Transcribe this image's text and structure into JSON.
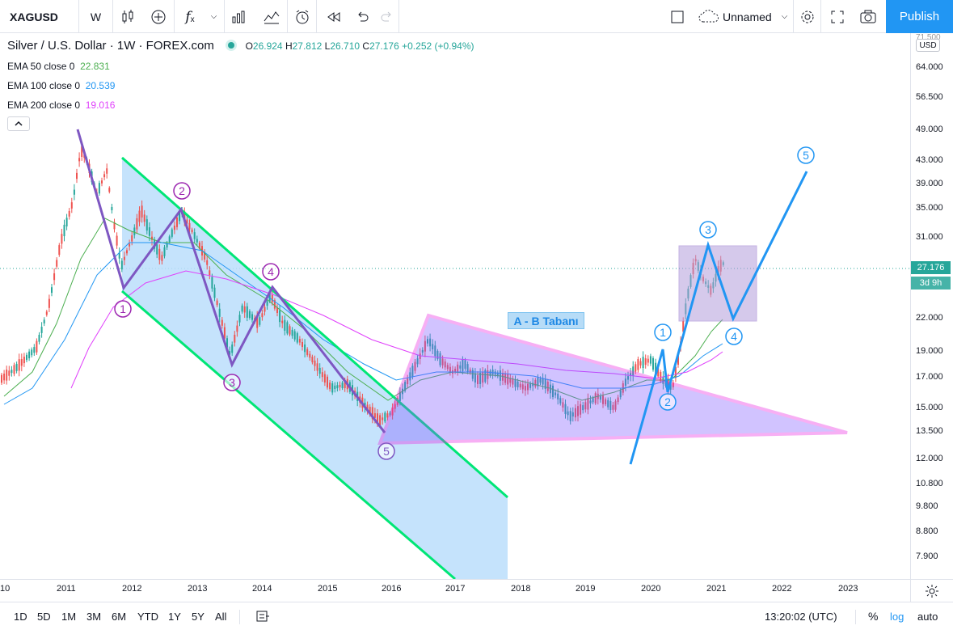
{
  "toolbar": {
    "symbol": "XAGUSD",
    "interval": "W",
    "indicators_icon": "fx-icon",
    "layout_name": "Unnamed",
    "publish_label": "Publish"
  },
  "legend": {
    "title": "Silver / U.S. Dollar · 1W · FOREX.com",
    "open_label": "O",
    "open": "26.924",
    "high_label": "H",
    "high": "27.812",
    "low_label": "L",
    "low": "26.710",
    "close_label": "C",
    "close": "27.176",
    "change": "+0.252 (+0.94%)",
    "ema": [
      {
        "label": "EMA 50 close 0",
        "value": "22.831",
        "color": "#4caf50"
      },
      {
        "label": "EMA 100 close 0",
        "value": "20.539",
        "color": "#2196f3"
      },
      {
        "label": "EMA 200 close 0",
        "value": "19.016",
        "color": "#e040fb"
      }
    ]
  },
  "price_scale": {
    "currency": "USD",
    "ticks": [
      "64.000",
      "56.500",
      "49.000",
      "43.000",
      "39.000",
      "35.000",
      "31.000",
      "22.000",
      "19.000",
      "17.000",
      "15.000",
      "13.500",
      "12.000",
      "10.800",
      "9.800",
      "8.800",
      "7.900"
    ],
    "last_price": "27.176",
    "countdown": "3d 9h"
  },
  "time_scale": {
    "ticks": [
      "10",
      "2011",
      "2012",
      "2013",
      "2014",
      "2015",
      "2016",
      "2017",
      "2018",
      "2019",
      "2020",
      "2021",
      "2022",
      "2023"
    ]
  },
  "annotations": {
    "wave_text": "A - B Tabanı",
    "purple_waves": [
      "1",
      "2",
      "3",
      "4",
      "5"
    ],
    "blue_waves": [
      "1",
      "2",
      "3",
      "4",
      "5"
    ]
  },
  "bottom_bar": {
    "ranges": [
      "1D",
      "5D",
      "1M",
      "3M",
      "6M",
      "YTD",
      "1Y",
      "5Y",
      "All"
    ],
    "clock": "13:20:02 (UTC)",
    "percent": "%",
    "log": "log",
    "auto": "auto"
  },
  "colors": {
    "accent": "#2196f3",
    "up": "#26a69a",
    "down": "#ef5350",
    "channel": "#00e676",
    "triangle": "#e91ee0",
    "wave_purple": "#7e57c2",
    "wave_blue": "#2196f3"
  }
}
